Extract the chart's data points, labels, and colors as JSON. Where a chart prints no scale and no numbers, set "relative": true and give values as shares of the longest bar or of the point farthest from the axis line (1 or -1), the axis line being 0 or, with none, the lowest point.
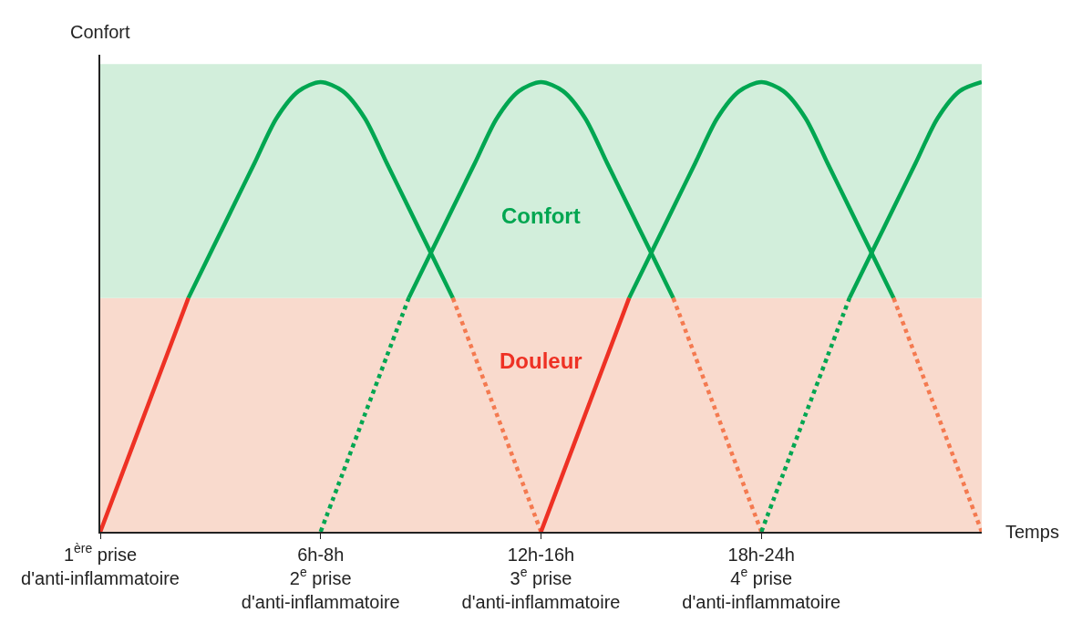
{
  "chart_data": {
    "type": "line",
    "relative": true,
    "xlabel": "Temps",
    "ylabel": "Confort",
    "categories": [
      "1$^{ère}$ prise\nd'anti-inflammatoire",
      null,
      null,
      null,
      null,
      null,
      null,
      null,
      null,
      null,
      "6h-8h\n2$^{e}$ prise\nd'anti-inflammatoire",
      null,
      null,
      null,
      null,
      null,
      null,
      null,
      null,
      null,
      "12h-16h\n3$^{e}$ prise\nd'anti-inflammatoire",
      null,
      null,
      null,
      null,
      null,
      null,
      null,
      null,
      null,
      "18h-24h\n4$^{e}$ prise\nd'anti-inflammatoire",
      null,
      null,
      null,
      null,
      null,
      null,
      null,
      null,
      null,
      null
    ],
    "grid": false,
    "marker": "none",
    "bands": [
      {
        "axis": "y",
        "from": 0,
        "to": 0.52,
        "color": "#f9dacd"
      },
      {
        "axis": "y",
        "from": 0.52,
        "to": 1.04,
        "color": "#d2eedb"
      }
    ],
    "annotations": [
      "Confort",
      "Douleur"
    ],
    "series": [
      {
        "color": "#ee3124",
        "line_style": "solid",
        "values": [
          0,
          0.13,
          0.26,
          0.39,
          0.52,
          null,
          null,
          null,
          null,
          null,
          null,
          null,
          null,
          null,
          null,
          null,
          null,
          null,
          null,
          null,
          null,
          null,
          null,
          null,
          null,
          null,
          null,
          null,
          null,
          null,
          null,
          null,
          null,
          null,
          null,
          null,
          null,
          null,
          null,
          null,
          null
        ]
      },
      {
        "color": "#00a651",
        "line_style": "solid",
        "values": [
          null,
          null,
          null,
          null,
          0.52,
          0.62,
          0.72,
          0.82,
          0.92,
          0.98,
          1,
          0.98,
          0.92,
          0.82,
          0.72,
          0.62,
          0.52,
          null,
          null,
          null,
          null,
          null,
          null,
          null,
          null,
          null,
          null,
          null,
          null,
          null,
          null,
          null,
          null,
          null,
          null,
          null,
          null,
          null,
          null,
          null,
          null
        ]
      },
      {
        "color": "#f47a50",
        "line_style": "dotted",
        "values": [
          null,
          null,
          null,
          null,
          null,
          null,
          null,
          null,
          null,
          null,
          null,
          null,
          null,
          null,
          null,
          null,
          0.52,
          0.39,
          0.26,
          0.13,
          0,
          null,
          null,
          null,
          null,
          null,
          null,
          null,
          null,
          null,
          null,
          null,
          null,
          null,
          null,
          null,
          null,
          null,
          null,
          null,
          null
        ]
      },
      {
        "color": "#00a651",
        "line_style": "dotted",
        "values": [
          null,
          null,
          null,
          null,
          null,
          null,
          null,
          null,
          null,
          null,
          0,
          0.13,
          0.26,
          0.39,
          0.52,
          null,
          null,
          null,
          null,
          null,
          null,
          null,
          null,
          null,
          null,
          null,
          null,
          null,
          null,
          null,
          null,
          null,
          null,
          null,
          null,
          null,
          null,
          null,
          null,
          null,
          null
        ]
      },
      {
        "color": "#00a651",
        "line_style": "solid",
        "values": [
          null,
          null,
          null,
          null,
          null,
          null,
          null,
          null,
          null,
          null,
          null,
          null,
          null,
          null,
          0.52,
          0.62,
          0.72,
          0.82,
          0.92,
          0.98,
          1,
          0.98,
          0.92,
          0.82,
          0.72,
          0.62,
          0.52,
          null,
          null,
          null,
          null,
          null,
          null,
          null,
          null,
          null,
          null,
          null,
          null,
          null,
          null
        ]
      },
      {
        "color": "#f47a50",
        "line_style": "dotted",
        "values": [
          null,
          null,
          null,
          null,
          null,
          null,
          null,
          null,
          null,
          null,
          null,
          null,
          null,
          null,
          null,
          null,
          null,
          null,
          null,
          null,
          null,
          null,
          null,
          null,
          null,
          null,
          0.52,
          0.39,
          0.26,
          0.13,
          0,
          null,
          null,
          null,
          null,
          null,
          null,
          null,
          null,
          null,
          null
        ]
      },
      {
        "color": "#ee3124",
        "line_style": "solid",
        "values": [
          null,
          null,
          null,
          null,
          null,
          null,
          null,
          null,
          null,
          null,
          null,
          null,
          null,
          null,
          null,
          null,
          null,
          null,
          null,
          null,
          0,
          0.13,
          0.26,
          0.39,
          0.52,
          null,
          null,
          null,
          null,
          null,
          null,
          null,
          null,
          null,
          null,
          null,
          null,
          null,
          null,
          null,
          null
        ]
      },
      {
        "color": "#00a651",
        "line_style": "solid",
        "values": [
          null,
          null,
          null,
          null,
          null,
          null,
          null,
          null,
          null,
          null,
          null,
          null,
          null,
          null,
          null,
          null,
          null,
          null,
          null,
          null,
          null,
          null,
          null,
          null,
          0.52,
          0.62,
          0.72,
          0.82,
          0.92,
          0.98,
          1,
          0.98,
          0.92,
          0.82,
          0.72,
          0.62,
          0.52,
          null,
          null,
          null,
          null
        ]
      },
      {
        "color": "#f47a50",
        "line_style": "dotted",
        "values": [
          null,
          null,
          null,
          null,
          null,
          null,
          null,
          null,
          null,
          null,
          null,
          null,
          null,
          null,
          null,
          null,
          null,
          null,
          null,
          null,
          null,
          null,
          null,
          null,
          null,
          null,
          null,
          null,
          null,
          null,
          null,
          null,
          null,
          null,
          null,
          null,
          0.52,
          0.39,
          0.26,
          0.13,
          0
        ]
      },
      {
        "color": "#00a651",
        "line_style": "dotted",
        "values": [
          null,
          null,
          null,
          null,
          null,
          null,
          null,
          null,
          null,
          null,
          null,
          null,
          null,
          null,
          null,
          null,
          null,
          null,
          null,
          null,
          null,
          null,
          null,
          null,
          null,
          null,
          null,
          null,
          null,
          null,
          0,
          0.13,
          0.26,
          0.39,
          0.52,
          null,
          null,
          null,
          null,
          null,
          null
        ]
      },
      {
        "color": "#00a651",
        "line_style": "solid",
        "values": [
          null,
          null,
          null,
          null,
          null,
          null,
          null,
          null,
          null,
          null,
          null,
          null,
          null,
          null,
          null,
          null,
          null,
          null,
          null,
          null,
          null,
          null,
          null,
          null,
          null,
          null,
          null,
          null,
          null,
          null,
          null,
          null,
          null,
          null,
          0.52,
          0.62,
          0.72,
          0.82,
          0.92,
          0.98,
          1
        ]
      }
    ]
  }
}
